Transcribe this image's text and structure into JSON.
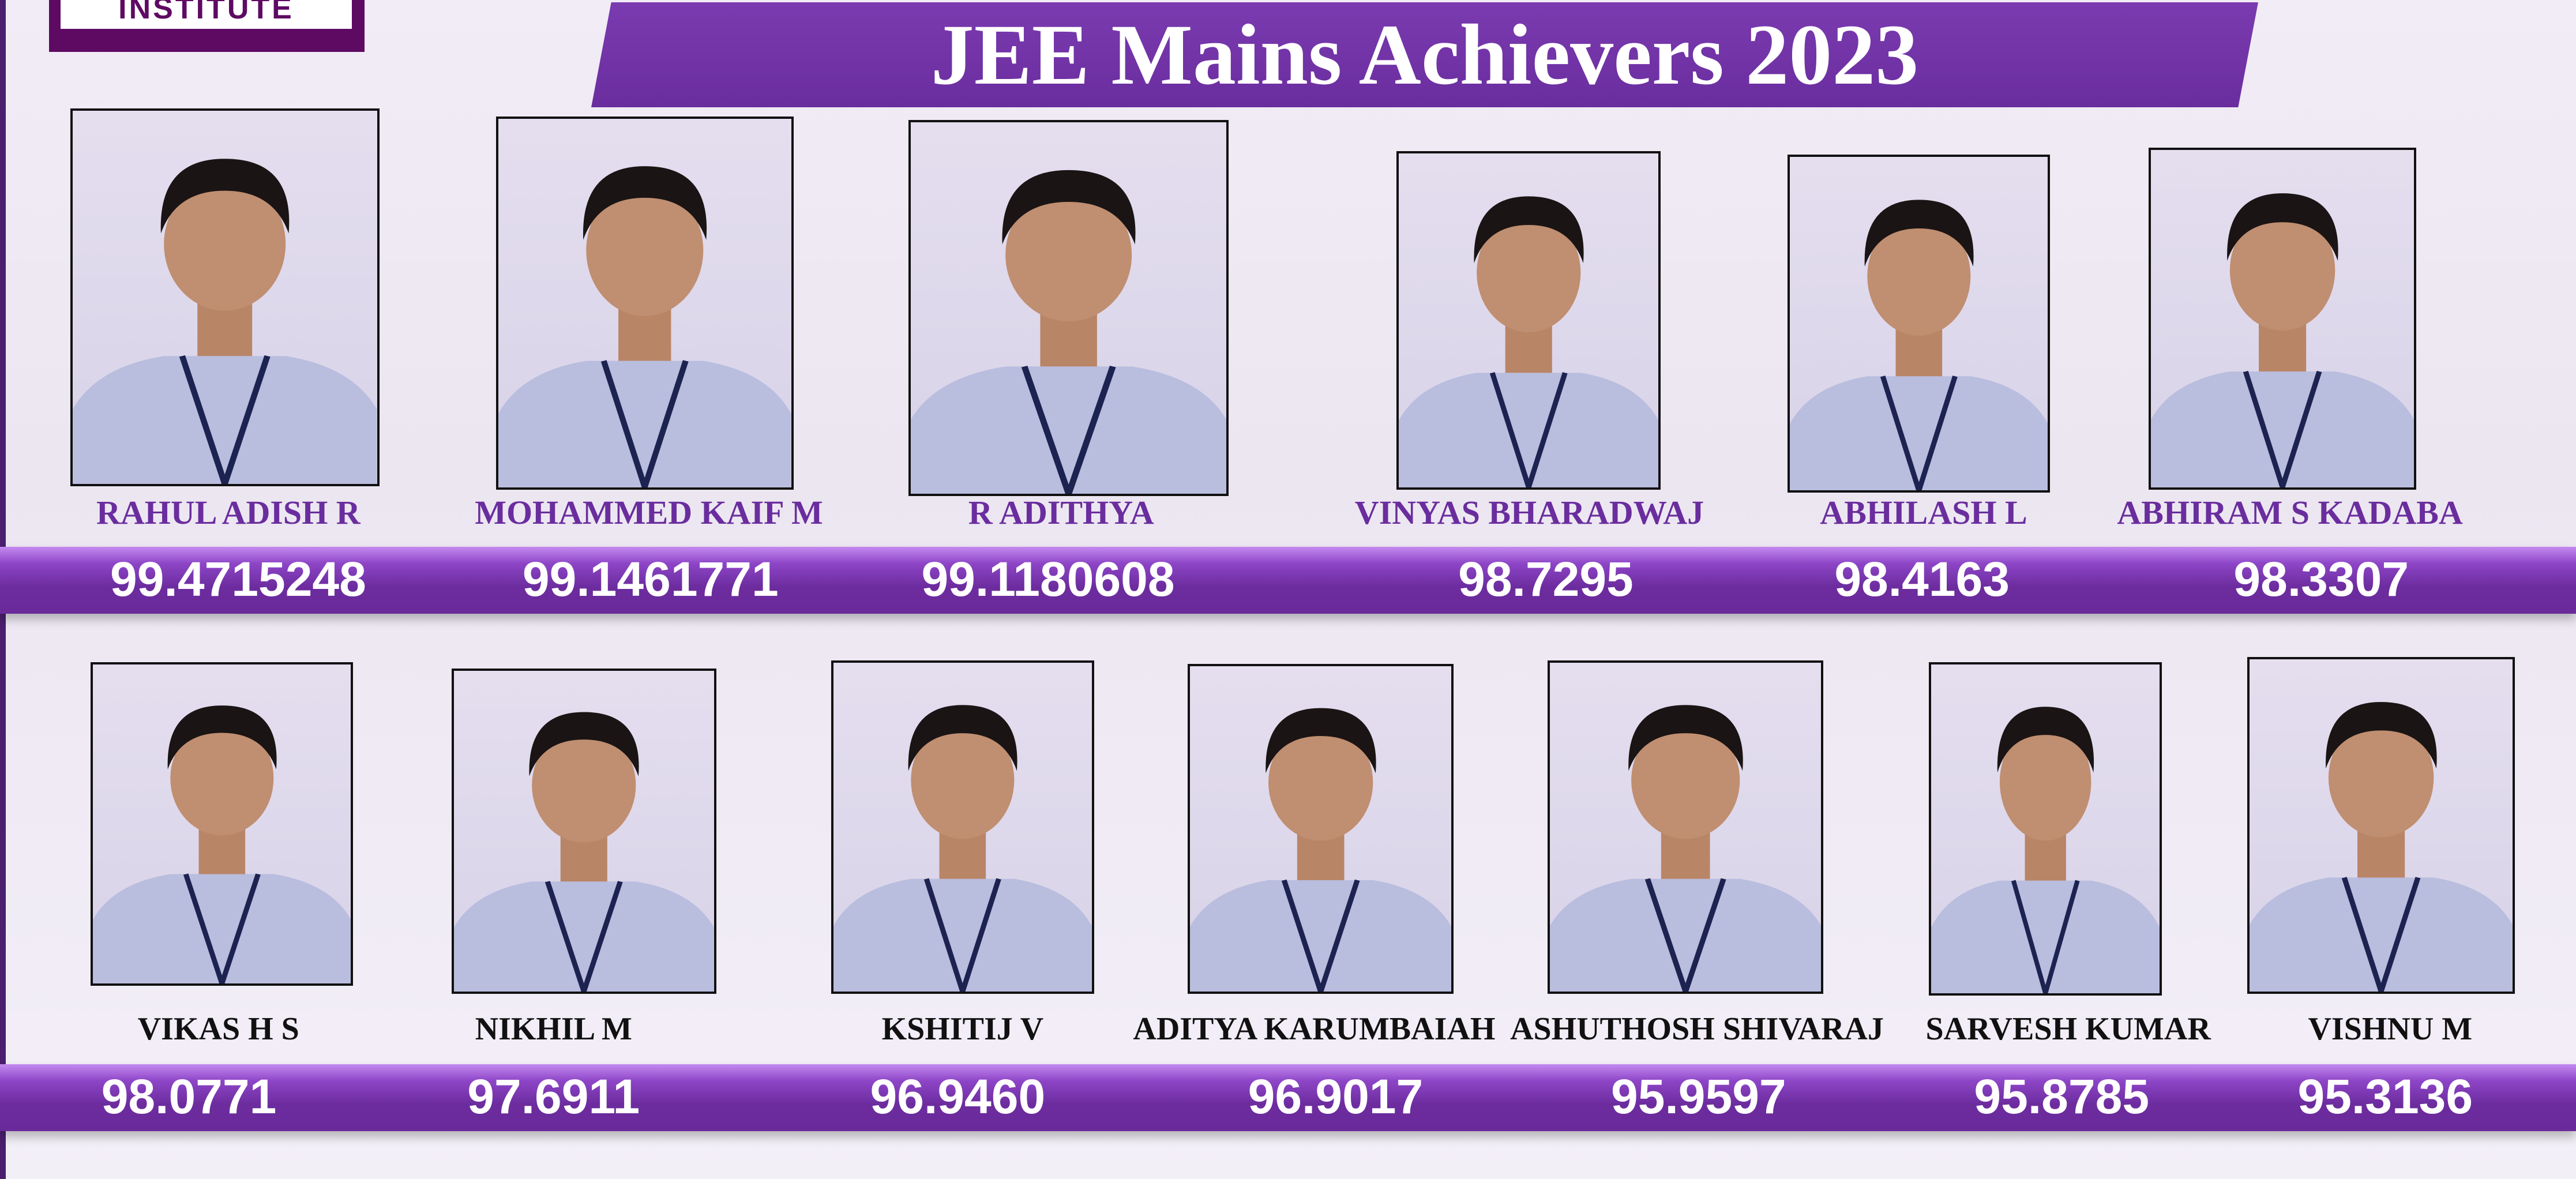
{
  "logo": {
    "text": "INSTITUTE"
  },
  "title": "JEE Mains Achievers 2023",
  "colors": {
    "banner": "#6f30a3",
    "logo": "#5e0a63",
    "names_row1": "#6a2d9e",
    "names_row2": "#111111",
    "score_text": "#ffffff"
  },
  "rows": [
    {
      "achievers": [
        {
          "name": "RAHUL ADISH R",
          "score": "99.4715248"
        },
        {
          "name": "MOHAMMED KAIF M",
          "score": "99.1461771"
        },
        {
          "name": "R ADITHYA",
          "score": "99.1180608"
        },
        {
          "name": "VINYAS  BHARADWAJ",
          "score": "98.7295"
        },
        {
          "name": "ABHILASH L",
          "score": "98.4163"
        },
        {
          "name": "ABHIRAM S KADABA",
          "score": "98.3307"
        }
      ]
    },
    {
      "achievers": [
        {
          "name": "VIKAS H S",
          "score": "98.0771"
        },
        {
          "name": "NIKHIL M",
          "score": "97.6911"
        },
        {
          "name": "KSHITIJ V",
          "score": "96.9460"
        },
        {
          "name": "ADITYA KARUMBAIAH",
          "score": "96.9017"
        },
        {
          "name": "ASHUTHOSH SHIVARAJ",
          "score": "95.9597"
        },
        {
          "name": "SARVESH KUMAR",
          "score": "95.8785"
        },
        {
          "name": "VISHNU M",
          "score": "95.3136"
        }
      ]
    }
  ]
}
